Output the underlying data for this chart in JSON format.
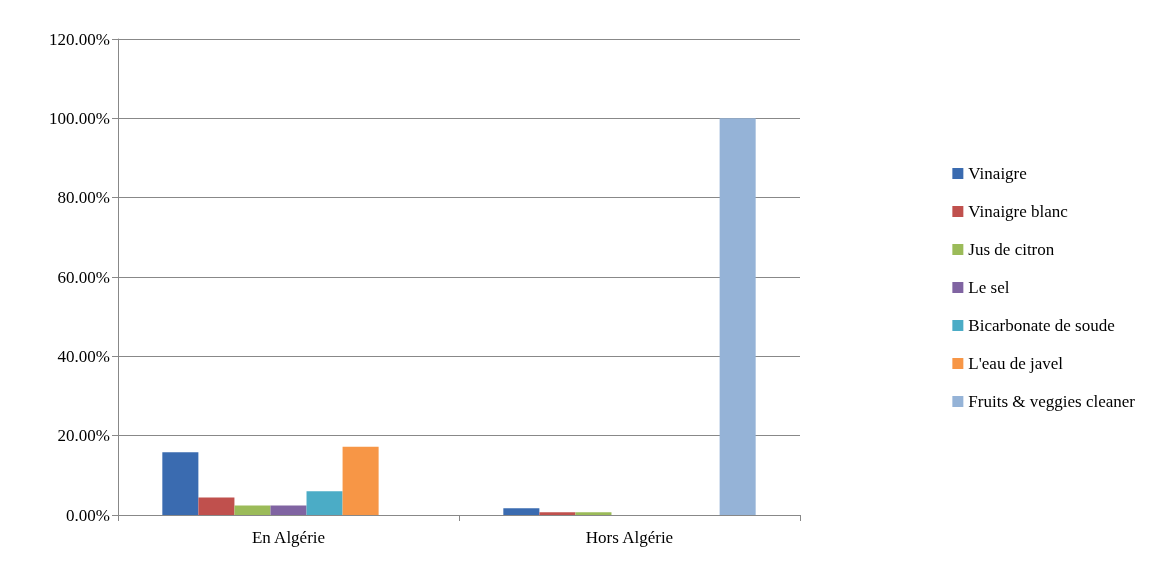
{
  "chart_data": {
    "type": "bar",
    "categories": [
      "En Algérie",
      "Hors Algérie"
    ],
    "series": [
      {
        "name": "Vinaigre",
        "color": "#3a6bb0",
        "values": [
          15.8,
          1.7
        ]
      },
      {
        "name": "Vinaigre blanc",
        "color": "#c0504d",
        "values": [
          4.4,
          0.7
        ]
      },
      {
        "name": "Jus de citron",
        "color": "#9bbb59",
        "values": [
          2.4,
          0.7
        ]
      },
      {
        "name": "Le sel",
        "color": "#8064a2",
        "values": [
          2.4,
          0
        ]
      },
      {
        "name": "Bicarbonate de soude",
        "color": "#4bacc6",
        "values": [
          6.0,
          0
        ]
      },
      {
        "name": "L'eau de javel",
        "color": "#f79646",
        "values": [
          17.2,
          0
        ]
      },
      {
        "name": "Fruits & veggies cleaner",
        "color": "#95b3d7",
        "values": [
          0,
          100
        ]
      }
    ],
    "ylim": [
      0,
      120
    ],
    "yticks": [
      {
        "value": 0,
        "label": "0.00%"
      },
      {
        "value": 20,
        "label": "20.00%"
      },
      {
        "value": 40,
        "label": "40.00%"
      },
      {
        "value": 60,
        "label": "60.00%"
      },
      {
        "value": 80,
        "label": "80.00%"
      },
      {
        "value": 100,
        "label": "100.00%"
      },
      {
        "value": 120,
        "label": "120.00%"
      }
    ],
    "grid": "y",
    "legend": "right"
  }
}
